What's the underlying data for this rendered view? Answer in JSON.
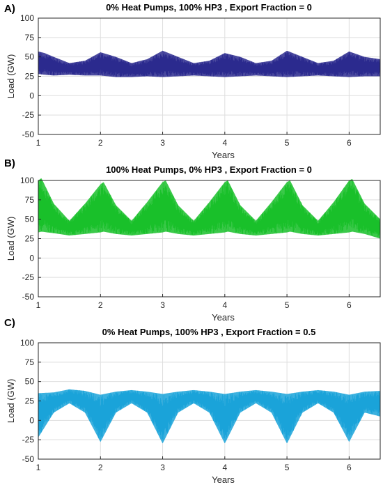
{
  "chart_data": [
    {
      "type": "area",
      "panel_label": "A)",
      "title": "0% Heat Pumps, 100% HP3 , Export Fraction = 0",
      "xlabel": "Years",
      "ylabel": "Load (GW)",
      "xlim": [
        1,
        6.5
      ],
      "ylim": [
        -50,
        100
      ],
      "xticks": [
        1,
        2,
        3,
        4,
        5,
        6
      ],
      "yticks": [
        -50,
        -25,
        0,
        25,
        50,
        75,
        100
      ],
      "grid": true,
      "color": "#2b2a8e",
      "series": [
        {
          "x": [
            1.0,
            1.1,
            1.25,
            1.5,
            1.75,
            2.0,
            2.25,
            2.5,
            2.75,
            3.0,
            3.25,
            3.5,
            3.75,
            4.0,
            4.25,
            4.5,
            4.75,
            5.0,
            5.25,
            5.5,
            5.75,
            6.0,
            6.25,
            6.5
          ],
          "upper": [
            57,
            55,
            50,
            42,
            45,
            56,
            50,
            42,
            47,
            58,
            50,
            42,
            45,
            55,
            50,
            42,
            45,
            58,
            50,
            42,
            45,
            57,
            50,
            47
          ],
          "lower": [
            28,
            27,
            26,
            27,
            26,
            26,
            24,
            24,
            25,
            24,
            25,
            26,
            25,
            24,
            25,
            26,
            25,
            24,
            25,
            26,
            25,
            24,
            25,
            25
          ]
        }
      ]
    },
    {
      "type": "area",
      "panel_label": "B)",
      "title": "100% Heat Pumps, 0% HP3 , Export Fraction = 0",
      "xlabel": "Years",
      "ylabel": "Load (GW)",
      "xlim": [
        1,
        6.5
      ],
      "ylim": [
        -50,
        100
      ],
      "xticks": [
        1,
        2,
        3,
        4,
        5,
        6
      ],
      "yticks": [
        -50,
        -25,
        0,
        25,
        50,
        75,
        100
      ],
      "grid": true,
      "color": "#19c02a",
      "series": [
        {
          "x": [
            1.0,
            1.05,
            1.25,
            1.5,
            1.75,
            2.0,
            2.05,
            2.25,
            2.5,
            2.75,
            3.0,
            3.05,
            3.25,
            3.5,
            3.75,
            4.0,
            4.05,
            4.25,
            4.5,
            4.75,
            5.0,
            5.05,
            5.25,
            5.5,
            5.75,
            6.0,
            6.05,
            6.25,
            6.5
          ],
          "upper": [
            100,
            103,
            70,
            48,
            70,
            95,
            98,
            68,
            48,
            72,
            98,
            100,
            68,
            48,
            72,
            98,
            100,
            68,
            48,
            72,
            98,
            100,
            68,
            48,
            72,
            100,
            102,
            70,
            50
          ],
          "lower": [
            33,
            34,
            32,
            29,
            31,
            33,
            34,
            31,
            29,
            31,
            33,
            34,
            31,
            29,
            31,
            33,
            34,
            31,
            29,
            31,
            33,
            34,
            31,
            29,
            31,
            33,
            34,
            31,
            25
          ]
        }
      ]
    },
    {
      "type": "area",
      "panel_label": "C)",
      "title": "0% Heat Pumps, 100% HP3 , Export Fraction = 0.5",
      "xlabel": "Years",
      "ylabel": "Load (GW)",
      "xlim": [
        1,
        6.5
      ],
      "ylim": [
        -50,
        100
      ],
      "xticks": [
        1,
        2,
        3,
        4,
        5,
        6
      ],
      "yticks": [
        -50,
        -25,
        0,
        25,
        50,
        75,
        100
      ],
      "grid": true,
      "color": "#1aa3d9",
      "series": [
        {
          "x": [
            1.0,
            1.25,
            1.5,
            1.75,
            2.0,
            2.25,
            2.5,
            2.75,
            3.0,
            3.25,
            3.5,
            3.75,
            4.0,
            4.25,
            4.5,
            4.75,
            5.0,
            5.25,
            5.5,
            5.75,
            6.0,
            6.25,
            6.5
          ],
          "upper": [
            35,
            36,
            40,
            38,
            33,
            37,
            39,
            37,
            34,
            37,
            39,
            37,
            34,
            37,
            39,
            37,
            34,
            37,
            39,
            37,
            33,
            37,
            38
          ],
          "lower": [
            -22,
            10,
            22,
            10,
            -28,
            10,
            22,
            10,
            -30,
            10,
            22,
            10,
            -30,
            10,
            22,
            10,
            -30,
            10,
            22,
            10,
            -28,
            10,
            5
          ]
        }
      ]
    }
  ]
}
